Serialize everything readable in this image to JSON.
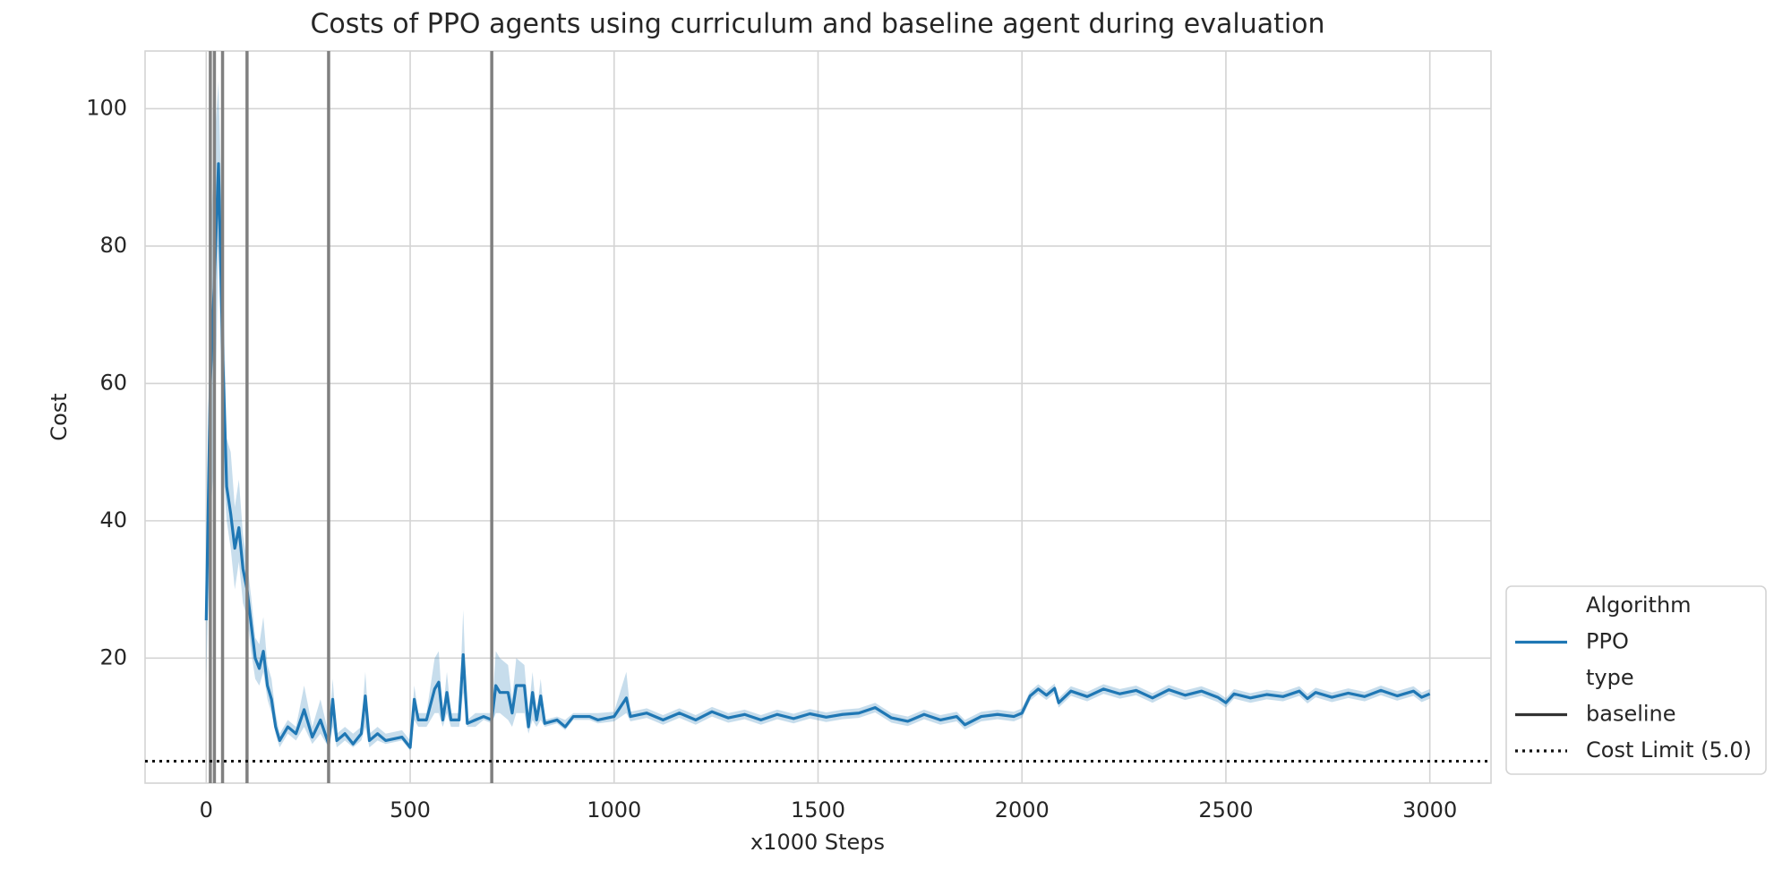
{
  "chart_data": {
    "type": "line",
    "title": "Costs of PPO agents using curriculum and baseline agent during evaluation",
    "xlabel": "x1000 Steps",
    "ylabel": "Cost",
    "xlim": [
      -150,
      3150
    ],
    "xticks": [
      0,
      500,
      1000,
      1500,
      2000,
      2500,
      3000
    ],
    "ylim": [
      1.8,
      108.4
    ],
    "yticks": [
      20,
      40,
      60,
      80,
      100
    ],
    "grid": true,
    "legend_loc": "lower right",
    "legend_title": "Algorithm",
    "style_title": "type",
    "style_entries": [
      "baseline"
    ],
    "vlines": [
      10,
      20,
      40,
      100,
      300,
      700
    ],
    "vline_color": "#808080",
    "hline": {
      "value": 5,
      "label": "Cost Limit (5.0)",
      "color": "#111111"
    },
    "series": [
      {
        "name": "PPO",
        "color": "#1f77b4",
        "x": [
          0,
          10,
          20,
          30,
          40,
          50,
          60,
          70,
          80,
          90,
          100,
          110,
          120,
          130,
          140,
          150,
          160,
          170,
          180,
          200,
          220,
          240,
          260,
          280,
          300,
          310,
          320,
          340,
          360,
          380,
          390,
          400,
          420,
          440,
          480,
          500,
          510,
          520,
          540,
          560,
          570,
          580,
          590,
          600,
          620,
          630,
          640,
          660,
          680,
          700,
          710,
          720,
          740,
          750,
          760,
          780,
          790,
          800,
          810,
          820,
          830,
          860,
          880,
          900,
          940,
          960,
          1000,
          1030,
          1040,
          1080,
          1120,
          1160,
          1200,
          1240,
          1280,
          1320,
          1360,
          1400,
          1440,
          1480,
          1520,
          1560,
          1600,
          1640,
          1680,
          1720,
          1760,
          1800,
          1840,
          1860,
          1900,
          1940,
          1980,
          2000,
          2020,
          2040,
          2060,
          2080,
          2090,
          2120,
          2160,
          2200,
          2240,
          2280,
          2320,
          2360,
          2400,
          2440,
          2480,
          2500,
          2520,
          2560,
          2600,
          2640,
          2680,
          2700,
          2720,
          2760,
          2800,
          2840,
          2880,
          2920,
          2960,
          2980,
          3000
        ],
        "values": [
          25.5,
          60,
          75,
          92,
          65,
          45,
          41,
          36,
          39,
          33,
          30,
          25,
          20,
          18.5,
          21,
          16,
          14,
          10,
          8,
          10,
          9,
          12.5,
          8.5,
          11,
          7.5,
          14,
          8,
          9,
          7.5,
          9,
          14.5,
          8,
          9,
          8,
          8.5,
          7,
          14,
          11,
          11,
          15.5,
          16.5,
          11,
          15,
          11,
          11,
          20.5,
          10.5,
          11,
          11.5,
          11,
          16,
          15,
          15,
          12,
          16,
          16,
          10,
          15,
          11,
          14.5,
          10.5,
          11,
          10,
          11.5,
          11.5,
          11,
          11.5,
          14.2,
          11.5,
          12,
          11,
          12,
          11,
          12.2,
          11.3,
          11.8,
          11,
          11.8,
          11.2,
          11.9,
          11.4,
          11.8,
          12,
          12.8,
          11.3,
          10.8,
          11.8,
          11,
          11.5,
          10.3,
          11.5,
          11.8,
          11.5,
          12,
          14.5,
          15.5,
          14.6,
          15.6,
          13.5,
          15.2,
          14.4,
          15.5,
          14.8,
          15.3,
          14.2,
          15.4,
          14.6,
          15.2,
          14.3,
          13.5,
          14.8,
          14.2,
          14.7,
          14.4,
          15.2,
          14.1,
          15,
          14.3,
          14.9,
          14.4,
          15.3,
          14.5,
          15.2,
          14.3,
          14.8
        ],
        "lower": [
          17,
          40,
          50,
          80,
          50,
          40,
          36,
          30,
          34,
          28,
          26,
          21,
          17,
          16,
          18,
          14,
          12,
          9,
          7,
          9,
          8,
          10,
          7.5,
          9,
          7,
          10,
          7,
          8,
          7,
          8,
          10,
          7,
          8,
          7.5,
          8,
          6.5,
          11,
          10,
          10,
          12,
          12,
          10,
          12,
          10,
          10,
          15,
          10,
          10,
          11,
          10.5,
          12,
          12,
          11,
          10,
          12,
          12,
          9,
          11,
          10,
          11,
          10,
          10.5,
          9.5,
          11,
          11,
          10.5,
          10.8,
          12,
          10.8,
          11.3,
          10.3,
          11.3,
          10.3,
          11.5,
          10.6,
          11.1,
          10.3,
          11.1,
          10.5,
          11.2,
          10.7,
          11.1,
          11.3,
          12.1,
          10.6,
          10.1,
          11.1,
          10.3,
          10.8,
          9.6,
          10.8,
          11.1,
          10.8,
          11.3,
          13.8,
          14.8,
          13.9,
          14.9,
          12.8,
          14.5,
          13.7,
          14.8,
          14.1,
          14.6,
          13.5,
          14.7,
          13.9,
          14.5,
          13.6,
          12.8,
          14.1,
          13.5,
          14,
          13.7,
          14.5,
          13.4,
          14.3,
          13.6,
          14.2,
          13.7,
          14.6,
          13.8,
          14.5,
          13.6,
          14.1
        ],
        "upper": [
          30,
          80,
          95,
          104,
          80,
          52,
          50,
          42,
          46,
          38,
          34,
          29,
          23,
          22,
          26,
          19,
          17,
          12,
          9,
          11,
          10,
          16,
          10,
          14,
          9,
          17,
          9,
          10,
          9,
          10,
          18,
          9,
          10,
          9,
          9.5,
          8,
          16,
          12,
          12,
          20,
          21,
          12,
          18,
          12,
          12,
          27,
          11,
          12,
          12,
          12,
          21,
          20,
          19,
          14,
          20,
          19,
          12,
          18,
          12,
          17,
          11,
          11.5,
          11,
          12,
          12,
          12,
          12.2,
          18,
          12.2,
          12.7,
          11.7,
          12.7,
          11.7,
          12.9,
          12,
          12.5,
          11.7,
          12.5,
          11.9,
          12.6,
          12.1,
          12.5,
          12.7,
          13.5,
          12,
          11.5,
          12.5,
          11.7,
          12.2,
          11,
          12.2,
          12.5,
          12.2,
          12.7,
          15.2,
          16.2,
          15.3,
          16.3,
          14.2,
          15.9,
          15.1,
          16.2,
          15.5,
          16,
          14.9,
          16.1,
          15.3,
          15.9,
          15,
          14.2,
          15.5,
          14.9,
          15.4,
          15.1,
          15.9,
          14.8,
          15.7,
          15,
          15.6,
          15.1,
          16,
          15.2,
          15.9,
          15,
          15.5
        ]
      }
    ]
  }
}
